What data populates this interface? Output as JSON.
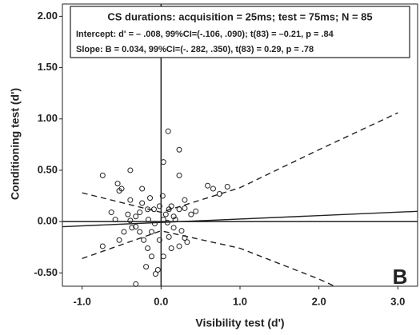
{
  "chart_data": {
    "type": "scatter",
    "x_label": "Visibility test (d')",
    "y_label": "Conditioning test (d')",
    "annotations": [
      "CS durations:  acquisition = 25ms; test = 75ms; N = 85",
      "Intercept:  d' = – .008, 99%CI=(-.106, .090); t(83) = –0.21, p = .84",
      "Slope:  B = 0.034, 99%CI=(-. 282, .350), t(83) = 0.29, p = .78"
    ],
    "panel_label": "B",
    "xlim": [
      -1.25,
      3.25
    ],
    "ylim": [
      -0.63,
      2.12
    ],
    "xticks": [
      {
        "value": -1,
        "label": "-1.0"
      },
      {
        "value": 0,
        "label": "0.0"
      },
      {
        "value": 1,
        "label": "1.0"
      },
      {
        "value": 2,
        "label": "2.0"
      },
      {
        "value": 3,
        "label": "3.0"
      }
    ],
    "yticks": [
      {
        "value": -0.5,
        "label": "-0.50"
      },
      {
        "value": 0,
        "label": "0.00"
      },
      {
        "value": 0.5,
        "label": "0.50"
      },
      {
        "value": 1,
        "label": "1.00"
      },
      {
        "value": 1.5,
        "label": "1.50"
      },
      {
        "value": 2,
        "label": "2.00"
      }
    ],
    "zero_lines": true,
    "color": "#222222",
    "x": [
      -0.74,
      -0.74,
      -0.39,
      -0.55,
      -0.53,
      -0.5,
      -0.24,
      -0.39,
      -0.63,
      -0.42,
      -0.32,
      -0.27,
      -0.17,
      -0.09,
      -0.02,
      0.02,
      0.03,
      0.09,
      0.23,
      0.23,
      -0.14,
      -0.24,
      -0.37,
      -0.27,
      -0.47,
      -0.53,
      -0.22,
      -0.17,
      -0.12,
      -0.19,
      -0.32,
      -0.04,
      -0.07,
      0.03,
      0.13,
      0.23,
      0.3,
      0.33,
      0.26,
      0.16,
      0.08,
      0.03,
      0.16,
      0.23,
      0.3,
      0.38,
      0.44,
      0.13,
      0.1,
      0.06,
      0.59,
      0.66,
      0.74,
      0.84,
      0.3,
      -0.08,
      -0.16,
      -0.12,
      -0.02,
      0.1,
      -0.39,
      -0.32,
      -0.58,
      0.18
    ],
    "values": [
      0.45,
      -0.24,
      0.5,
      0.37,
      0.3,
      0.32,
      0.32,
      0.21,
      0.09,
      0.07,
      0.05,
      0.09,
      0.12,
      0.12,
      0.15,
      0.25,
      0.58,
      0.88,
      0.7,
      0.45,
      0.23,
      0.18,
      -0.06,
      -0.1,
      -0.1,
      -0.18,
      -0.18,
      -0.26,
      -0.34,
      -0.44,
      -0.61,
      -0.47,
      -0.51,
      -0.34,
      -0.26,
      -0.24,
      -0.16,
      -0.2,
      -0.09,
      -0.06,
      -0.01,
      0.02,
      0.05,
      0.12,
      0.13,
      0.07,
      0.1,
      0.15,
      0.12,
      0.07,
      0.35,
      0.32,
      0.27,
      0.34,
      0.21,
      -0.02,
      0.02,
      -0.1,
      -0.18,
      -0.15,
      0.01,
      -0.05,
      0.02,
      0.02
    ],
    "lines": [
      {
        "style": "solid",
        "x": [
          -1.25,
          3.25
        ],
        "y": [
          -0.05,
          0.1
        ]
      },
      {
        "style": "dashed",
        "x": [
          -1,
          0,
          1,
          2,
          3
        ],
        "y": [
          0.28,
          0.09,
          0.33,
          0.7,
          1.06
        ]
      },
      {
        "style": "dashed",
        "x": [
          -1,
          0,
          1,
          2,
          2.2
        ],
        "y": [
          -0.36,
          -0.09,
          -0.26,
          -0.56,
          -0.63
        ]
      }
    ]
  }
}
